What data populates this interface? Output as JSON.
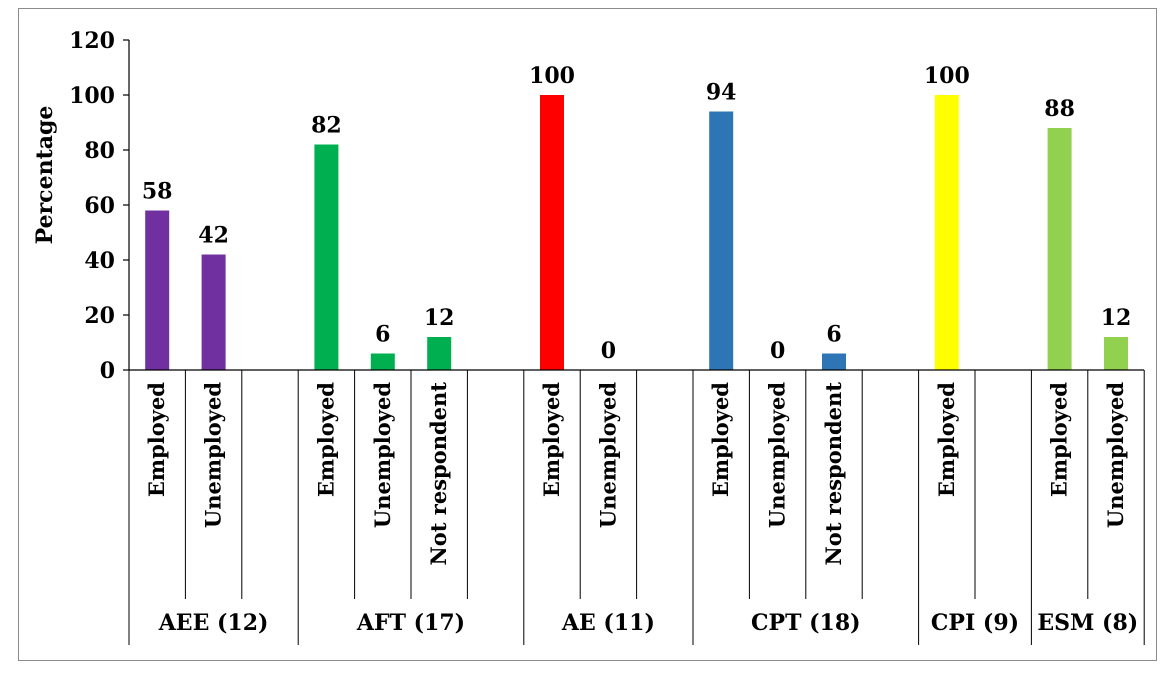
{
  "chart_data": {
    "type": "bar",
    "ylabel": "Percentage",
    "ylim": [
      0,
      120
    ],
    "yticks": [
      0,
      20,
      40,
      60,
      80,
      100,
      120
    ],
    "grid": false,
    "legend": "none",
    "groups": [
      {
        "label": "AEE (12)",
        "color": "#7030A0",
        "categories": [
          "Employed",
          "Unemployed",
          ""
        ],
        "values": [
          58,
          42,
          null
        ]
      },
      {
        "label": "AFT (17)",
        "color": "#00B050",
        "categories": [
          "Employed",
          "Unemployed",
          "Not respondent",
          ""
        ],
        "values": [
          82,
          6,
          12,
          null
        ]
      },
      {
        "label": "AE (11)",
        "color": "#FF0000",
        "categories": [
          "Employed",
          "Unemployed",
          ""
        ],
        "values": [
          100,
          0,
          null
        ]
      },
      {
        "label": "CPT (18)",
        "color": "#2E75B6",
        "categories": [
          "Employed",
          "Unemployed",
          "Not respondent",
          ""
        ],
        "values": [
          94,
          0,
          6,
          null
        ]
      },
      {
        "label": "CPI (9)",
        "color": "#FFFF00",
        "categories": [
          "Employed",
          ""
        ],
        "values": [
          100,
          null
        ]
      },
      {
        "label": "ESM (8)",
        "color": "#92D050",
        "categories": [
          "Employed",
          "Unemployed"
        ],
        "values": [
          88,
          12
        ]
      }
    ]
  }
}
